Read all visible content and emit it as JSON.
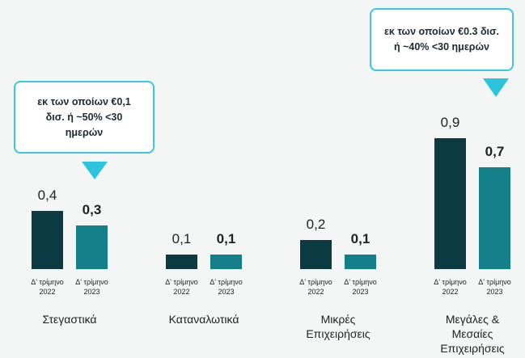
{
  "chart_data": {
    "type": "bar",
    "categories": [
      "Στεγαστικά",
      "Καταναλωτικά",
      "Μικρές Επιχειρήσεις",
      "Μεγάλες & Μεσαίες Επιχειρήσεις"
    ],
    "series": [
      {
        "name": "Δ' τρίμηνο 2022",
        "color": "#0c3a43",
        "values": [
          0.4,
          0.1,
          0.2,
          0.9
        ],
        "value_labels": [
          "0,4",
          "0,1",
          "0,2",
          "0,9"
        ]
      },
      {
        "name": "Δ' τρίμηνο 2023",
        "color": "#137f88",
        "values": [
          0.3,
          0.1,
          0.1,
          0.7
        ],
        "value_labels": [
          "0,3",
          "0,1",
          "0,1",
          "0,7"
        ]
      }
    ],
    "annotations": [
      "εκ των οποίων €0,1 δισ. ή ~50% <30 ημερών",
      "εκ των οποίων €0.3 δισ. ή ~40% <30 ημερών"
    ]
  }
}
